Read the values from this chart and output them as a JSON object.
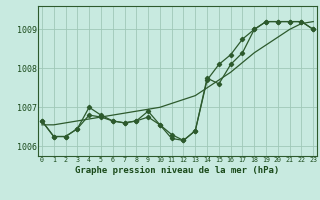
{
  "title": "Graphe pression niveau de la mer (hPa)",
  "background_color": "#c8eae0",
  "grid_color": "#a0c8b8",
  "line_color": "#2d5a2d",
  "hours": [
    0,
    1,
    2,
    3,
    4,
    5,
    6,
    7,
    8,
    9,
    10,
    11,
    12,
    13,
    14,
    15,
    16,
    17,
    18,
    19,
    20,
    21,
    22,
    23
  ],
  "series_jagged": [
    1006.65,
    1006.25,
    1006.25,
    1006.45,
    1007.0,
    1006.8,
    1006.65,
    1006.6,
    1006.65,
    1006.9,
    1006.55,
    1006.2,
    1006.15,
    1006.4,
    1007.75,
    1007.6,
    1008.1,
    1008.4,
    1009.0,
    1009.2,
    1009.2,
    1009.2,
    1009.2,
    1009.0
  ],
  "series_smooth": [
    1006.65,
    1006.25,
    1006.25,
    1006.45,
    1006.8,
    1006.75,
    1006.65,
    1006.6,
    1006.65,
    1006.75,
    1006.55,
    1006.3,
    1006.15,
    1006.4,
    1007.7,
    1008.1,
    1008.35,
    1008.75,
    1009.0,
    1009.2,
    1009.2,
    1009.2,
    1009.2,
    1009.0
  ],
  "series_trend": [
    1006.55,
    1006.55,
    1006.6,
    1006.65,
    1006.7,
    1006.75,
    1006.8,
    1006.85,
    1006.9,
    1006.95,
    1007.0,
    1007.1,
    1007.2,
    1007.3,
    1007.5,
    1007.7,
    1007.9,
    1008.15,
    1008.4,
    1008.6,
    1008.8,
    1009.0,
    1009.15,
    1009.2
  ],
  "ylim": [
    1005.75,
    1009.6
  ],
  "yticks": [
    1006,
    1007,
    1008,
    1009
  ],
  "xlabel_color": "#1a4a1a",
  "tick_color": "#1a4a1a",
  "spine_color": "#2d5a2d"
}
